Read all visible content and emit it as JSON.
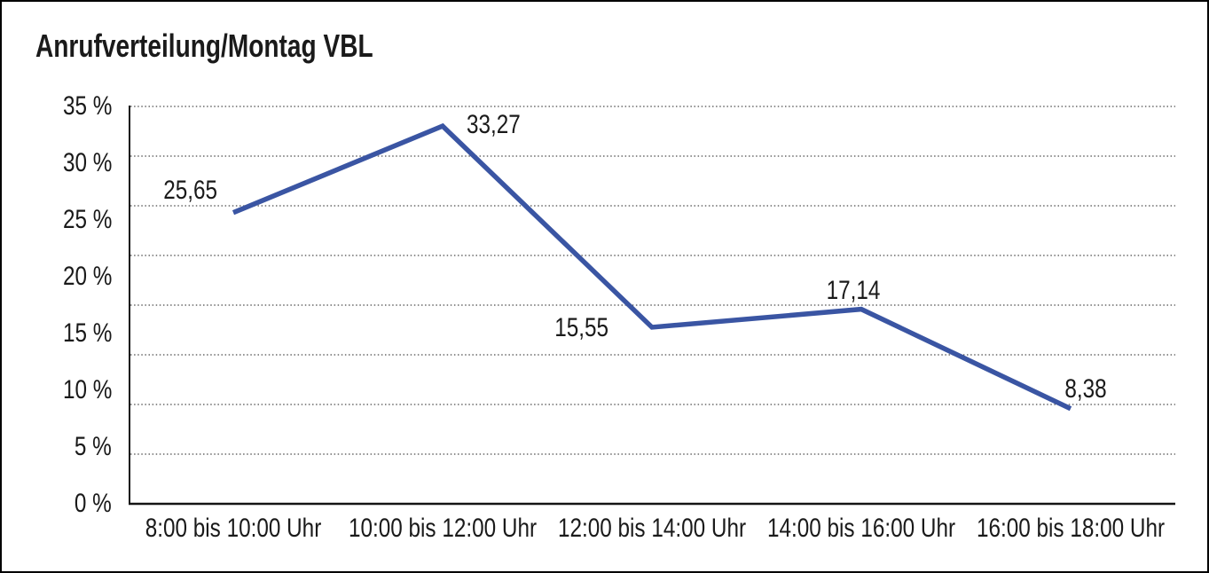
{
  "chart_data": {
    "type": "line",
    "title": "Anrufverteilung/Montag VBL",
    "categories": [
      "8:00 bis 10:00 Uhr",
      "10:00 bis 12:00 Uhr",
      "12:00 bis 14:00 Uhr",
      "14:00 bis 16:00 Uhr",
      "16:00 bis 18:00 Uhr"
    ],
    "values": [
      25.65,
      33.27,
      15.55,
      17.14,
      8.38
    ],
    "point_labels": [
      "25,65",
      "33,27",
      "15,55",
      "17,14",
      "8,38"
    ],
    "xlabel": "",
    "ylabel": "",
    "ylim": [
      0,
      35
    ],
    "y_ticks": [
      {
        "value": 0,
        "label": "0 %"
      },
      {
        "value": 5,
        "label": "5 %"
      },
      {
        "value": 10,
        "label": "10 %"
      },
      {
        "value": 15,
        "label": "15 %"
      },
      {
        "value": 20,
        "label": "20 %"
      },
      {
        "value": 25,
        "label": "25 %"
      },
      {
        "value": 30,
        "label": "30 %"
      },
      {
        "value": 35,
        "label": "35 %"
      }
    ],
    "grid": {
      "horizontal": true,
      "style": "dotted",
      "divisions": 8
    },
    "legend": "none",
    "colors": {
      "line": "#3a55a3",
      "grid": "#4a4a4a",
      "axis": "#141414",
      "text": "#1a1a1a",
      "frame_border": "#000000",
      "background": "#ffffff"
    }
  }
}
